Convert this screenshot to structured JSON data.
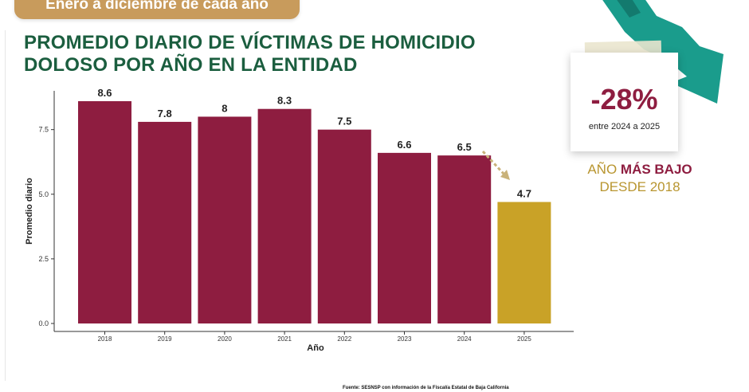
{
  "banner": {
    "text": "Enero a diciembre de cada año"
  },
  "title": {
    "line1": "PROMEDIO DIARIO DE VÍCTIMAS DE HOMICIDIO",
    "line2": "DOLOSO POR AÑO EN LA ENTIDAD"
  },
  "chart_data": {
    "type": "bar",
    "categories": [
      "2018",
      "2019",
      "2020",
      "2021",
      "2022",
      "2023",
      "2024",
      "2025"
    ],
    "values": [
      8.6,
      7.8,
      8,
      8.3,
      7.5,
      6.6,
      6.5,
      4.7
    ],
    "value_labels": [
      "8.6",
      "7.8",
      "8",
      "8.3",
      "7.5",
      "6.6",
      "6.5",
      "4.7"
    ],
    "xlabel": "Año",
    "ylabel": "Promedio diario",
    "ylim": [
      0,
      9.0
    ],
    "yticks": [
      0,
      2.5,
      5,
      7.5
    ],
    "ytick_labels": [
      "0.0",
      "2.5",
      "5.0",
      "7.5"
    ],
    "grid": false,
    "colors": {
      "default": "#8e1d40",
      "highlight": "#c9a227"
    },
    "highlight_category": "2025"
  },
  "callout": {
    "percent": "-28%",
    "percent_sub": "entre 2024 a 2025",
    "line1_prefix": "AÑO ",
    "line1_bold": "MÁS BAJO",
    "line2": "DESDE 2018"
  },
  "source": {
    "text": "Fuente: SESNSP con información de la Fiscalía Estatal de Baja California"
  },
  "colors": {
    "title": "#1b5e3f",
    "banner": "#c89b5c",
    "accent_arrow": "#1a9c8c",
    "percent": "#8e1d40",
    "callout_text": "#b8952f"
  },
  "icons": {
    "trend": "down-trend-arrow-icon",
    "small_arrow": "dashed-arrow-icon"
  }
}
